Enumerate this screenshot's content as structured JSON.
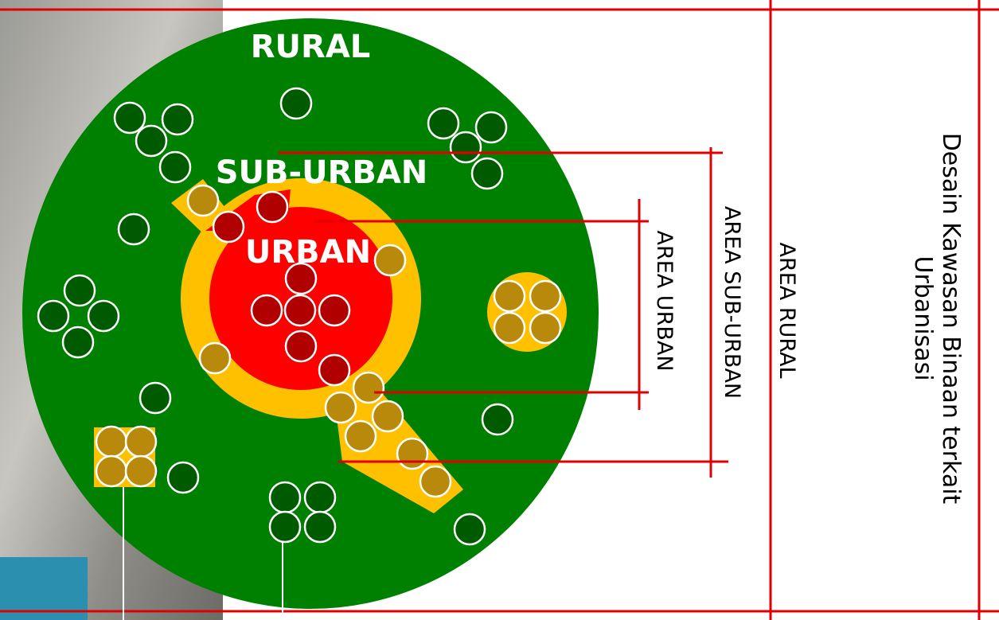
{
  "labels": {
    "rural": "RURAL",
    "sub_urban": "SUB-URBAN",
    "urban": "URBAN"
  },
  "areas": {
    "urban": "AREA URBAN",
    "sub_urban": "AREA SUB-URBAN",
    "rural": "AREA RURAL"
  },
  "title": {
    "line1": "Desain Kawasan Binaan terkait",
    "line2": "Urbanisasi"
  }
}
